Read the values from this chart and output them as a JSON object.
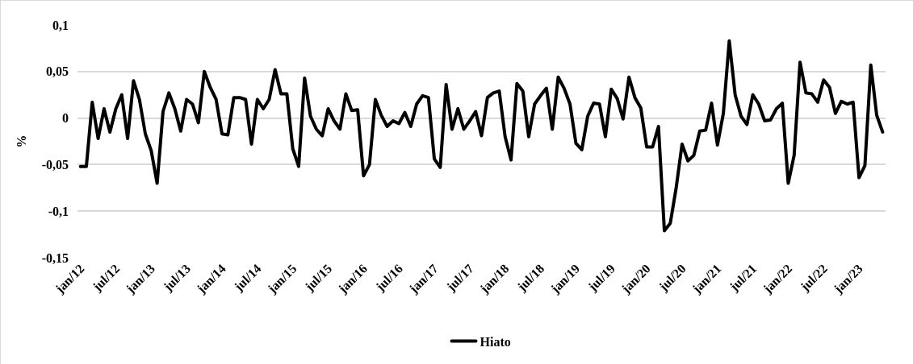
{
  "chart_data": {
    "type": "line",
    "ylabel": "%",
    "categories": [
      "jan/12",
      null,
      null,
      null,
      null,
      null,
      "jul/12",
      null,
      null,
      null,
      null,
      null,
      "jan/13",
      null,
      null,
      null,
      null,
      null,
      "jul/13",
      null,
      null,
      null,
      null,
      null,
      "jan/14",
      null,
      null,
      null,
      null,
      null,
      "jul/14",
      null,
      null,
      null,
      null,
      null,
      "jan/15",
      null,
      null,
      null,
      null,
      null,
      "jul/15",
      null,
      null,
      null,
      null,
      null,
      "jan/16",
      null,
      null,
      null,
      null,
      null,
      "jul/16",
      null,
      null,
      null,
      null,
      null,
      "jan/17",
      null,
      null,
      null,
      null,
      null,
      "jul/17",
      null,
      null,
      null,
      null,
      null,
      "jan/18",
      null,
      null,
      null,
      null,
      null,
      "jul/18",
      null,
      null,
      null,
      null,
      null,
      "jan/19",
      null,
      null,
      null,
      null,
      null,
      "jul/19",
      null,
      null,
      null,
      null,
      null,
      "jan/20",
      null,
      null,
      null,
      null,
      null,
      "jul/20",
      null,
      null,
      null,
      null,
      null,
      "jan/21",
      null,
      null,
      null,
      null,
      null,
      "jul/21",
      null,
      null,
      null,
      null,
      null,
      "jan/22",
      null,
      null,
      null,
      null,
      null,
      "jul/22",
      null,
      null,
      null,
      null,
      null,
      "jan/23",
      null,
      null,
      null,
      null
    ],
    "series": [
      {
        "name": "Hiato",
        "color": "#000000",
        "values": [
          -0.052,
          -0.052,
          0.017,
          -0.022,
          0.01,
          -0.015,
          0.01,
          0.025,
          -0.022,
          0.04,
          0.02,
          -0.017,
          -0.035,
          -0.07,
          0.007,
          0.027,
          0.01,
          -0.014,
          0.02,
          0.015,
          -0.005,
          0.05,
          0.033,
          0.02,
          -0.017,
          -0.018,
          0.022,
          0.022,
          0.02,
          -0.028,
          0.02,
          0.01,
          0.02,
          0.052,
          0.026,
          0.026,
          -0.033,
          -0.052,
          0.043,
          0.002,
          -0.012,
          -0.019,
          0.01,
          -0.003,
          -0.012,
          0.026,
          0.008,
          0.009,
          -0.062,
          -0.05,
          0.02,
          0.003,
          -0.009,
          -0.003,
          -0.006,
          0.006,
          -0.009,
          0.015,
          0.024,
          0.022,
          -0.044,
          -0.053,
          0.036,
          -0.012,
          0.01,
          -0.012,
          -0.003,
          0.007,
          -0.019,
          0.022,
          0.027,
          0.029,
          -0.02,
          -0.045,
          0.037,
          0.029,
          -0.02,
          0.015,
          0.024,
          0.032,
          -0.012,
          0.044,
          0.032,
          0.015,
          -0.027,
          -0.034,
          0.002,
          0.016,
          0.015,
          -0.02,
          0.031,
          0.021,
          -0.001,
          0.044,
          0.022,
          0.011,
          -0.031,
          -0.031,
          -0.009,
          -0.121,
          -0.113,
          -0.075,
          -0.028,
          -0.046,
          -0.04,
          -0.014,
          -0.013,
          0.016,
          -0.029,
          0.005,
          0.083,
          0.025,
          0.002,
          -0.007,
          0.025,
          0.015,
          -0.003,
          -0.002,
          0.01,
          0.016,
          -0.07,
          -0.04,
          0.06,
          0.027,
          0.026,
          0.017,
          0.041,
          0.033,
          0.005,
          0.018,
          0.015,
          0.017,
          -0.064,
          -0.051,
          0.057,
          0.003,
          -0.015
        ]
      }
    ],
    "ylim": [
      -0.15,
      0.1
    ],
    "yticks": [
      {
        "value": -0.15,
        "label": "-0,15"
      },
      {
        "value": -0.1,
        "label": "-0,1"
      },
      {
        "value": -0.05,
        "label": "-0,05"
      },
      {
        "value": 0,
        "label": "0"
      },
      {
        "value": 0.05,
        "label": "0,05"
      },
      {
        "value": 0.1,
        "label": "0,1"
      }
    ],
    "grid": "y",
    "legend": "bottom",
    "marker": "none",
    "line_style": "solid"
  }
}
